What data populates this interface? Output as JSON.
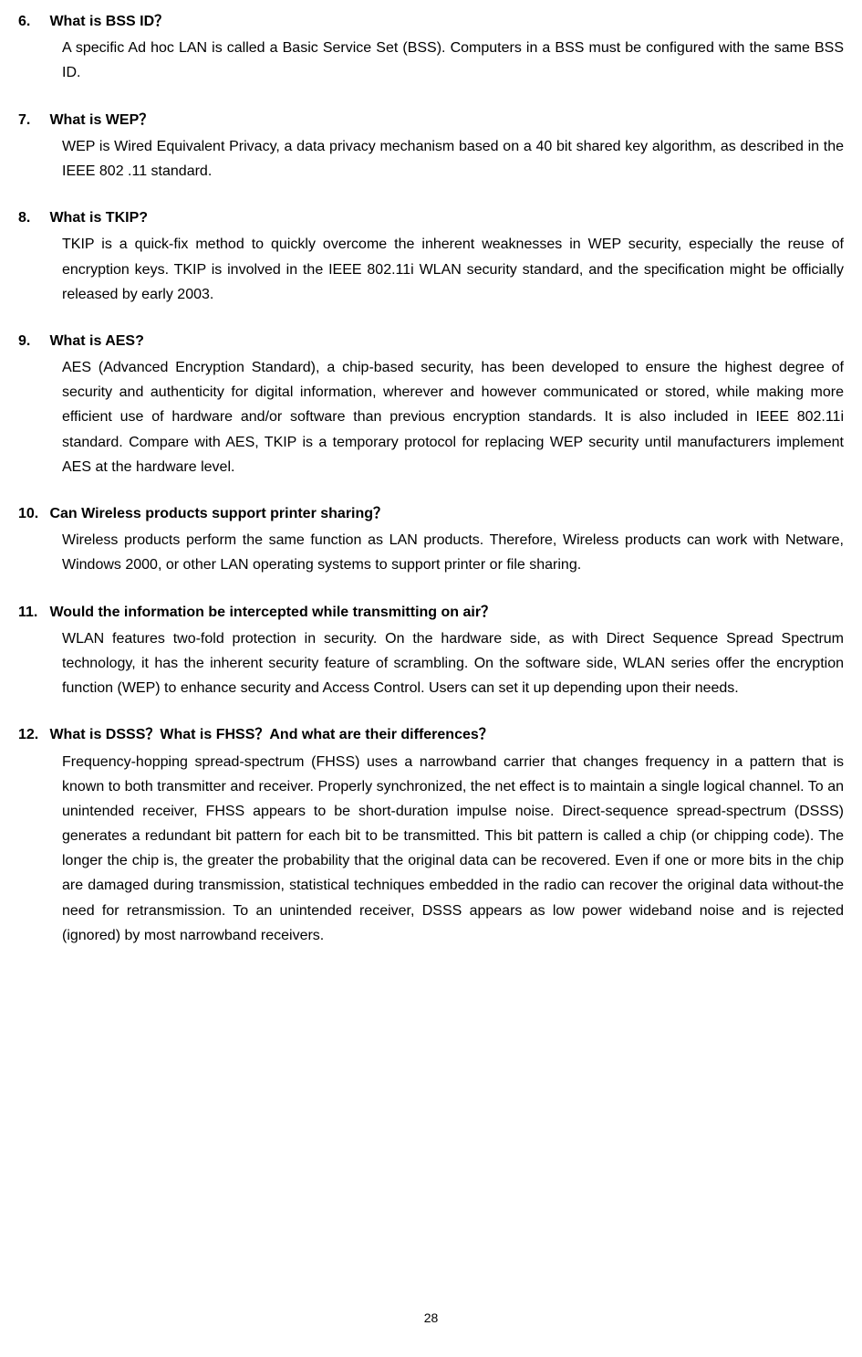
{
  "faqs": [
    {
      "number": "6.",
      "question": "What is BSS ID？",
      "answer": "A specific Ad hoc LAN is called a Basic Service Set (BSS). Computers in a BSS must be configured with the same BSS ID."
    },
    {
      "number": "7.",
      "question": "What is WEP？",
      "answer": "WEP is Wired Equivalent Privacy, a data privacy mechanism based on a 40 bit shared key algorithm, as described in the IEEE 802 .11 standard."
    },
    {
      "number": "8.",
      "question": "What is TKIP?",
      "answer": "TKIP is a quick-fix method to quickly overcome the inherent weaknesses in WEP security, especially the reuse of encryption keys. TKIP is involved in the IEEE 802.11i WLAN security standard, and the specification might be officially released by early 2003."
    },
    {
      "number": "9.",
      "question": "What is AES?",
      "answer": "AES (Advanced Encryption Standard), a chip-based security, has been developed to ensure the highest degree of security and authenticity for digital information, wherever and however communicated or stored, while making more efficient use of hardware and/or software than previous encryption standards. It is also included in IEEE 802.11i standard. Compare with AES, TKIP is a temporary protocol for replacing WEP security until manufacturers implement AES at the hardware level."
    },
    {
      "number": "10.",
      "question": "Can Wireless products support printer sharing？",
      "answer": "Wireless products perform the same function as LAN products. Therefore, Wireless products can work with Netware, Windows 2000, or other LAN operating systems to support printer or file sharing."
    },
    {
      "number": "11.",
      "question": "Would the information be intercepted while transmitting on air？",
      "answer": "WLAN features two-fold protection in security. On the hardware side, as with Direct Sequence Spread Spectrum technology, it has the inherent security feature of scrambling. On the software side, WLAN series offer the encryption function (WEP) to enhance security and Access Control. Users can set it up depending upon their needs."
    },
    {
      "number": "12.",
      "question": "What is DSSS？What is FHSS？And what are their differences？",
      "answer": "Frequency-hopping spread-spectrum (FHSS) uses a narrowband carrier that changes frequency in a pattern that is known to both transmitter and receiver. Properly synchronized, the net effect is to maintain a single logical channel. To an unintended receiver, FHSS appears to be short-duration impulse noise. Direct-sequence spread-spectrum (DSSS) generates a redundant bit pattern for each bit to be transmitted. This bit pattern is called a chip (or chipping code). The longer the chip is, the greater the probability that the original data can be recovered. Even if one or more bits in the chip are damaged during transmission, statistical techniques embedded in the radio can recover the original data without-the need for retransmission. To an unintended receiver, DSSS appears as low power wideband noise and is rejected (ignored) by most narrowband receivers."
    }
  ],
  "pageNumber": "28"
}
